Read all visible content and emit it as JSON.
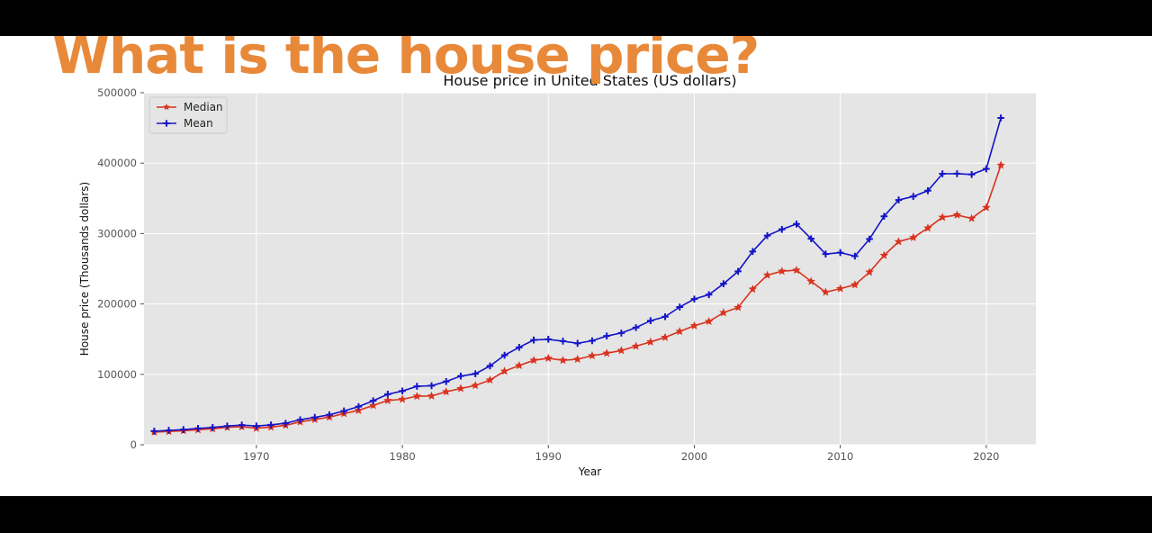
{
  "slide": {
    "headline": "What is the house price?"
  },
  "colors": {
    "headline": "#e8893a",
    "median": "#d9331f",
    "mean": "#1414c8",
    "plot_bg": "#e5e5e5",
    "grid": "#ffffff"
  },
  "chart_data": {
    "type": "line",
    "title": "House price in United States (US dollars)",
    "xlabel": "Year",
    "ylabel": "House price (Thousands dollars)",
    "xlim": [
      1962.3,
      2023.4
    ],
    "ylim": [
      0,
      500000
    ],
    "xticks": [
      1970,
      1980,
      1990,
      2000,
      2010,
      2020
    ],
    "yticks": [
      0,
      100000,
      200000,
      300000,
      400000,
      500000
    ],
    "grid": true,
    "legend": "top-left",
    "x": [
      1963,
      1964,
      1965,
      1966,
      1967,
      1968,
      1969,
      1970,
      1971,
      1972,
      1973,
      1974,
      1975,
      1976,
      1977,
      1978,
      1979,
      1980,
      1981,
      1982,
      1983,
      1984,
      1985,
      1986,
      1987,
      1988,
      1989,
      1990,
      1991,
      1992,
      1993,
      1994,
      1995,
      1996,
      1997,
      1998,
      1999,
      2000,
      2001,
      2002,
      2003,
      2004,
      2005,
      2006,
      2007,
      2008,
      2009,
      2010,
      2011,
      2012,
      2013,
      2014,
      2015,
      2016,
      2017,
      2018,
      2019,
      2020,
      2021
    ],
    "series": [
      {
        "name": "Median",
        "marker": "star",
        "values": [
          18000,
          18900,
          20000,
          21400,
          22700,
          24700,
          25600,
          23400,
          25200,
          27600,
          32500,
          35900,
          39300,
          44200,
          48800,
          55700,
          62900,
          64600,
          68900,
          69300,
          75300,
          79900,
          84300,
          92000,
          104500,
          112500,
          120000,
          122900,
          120000,
          121500,
          126500,
          130000,
          133900,
          140000,
          146000,
          152500,
          161000,
          169000,
          175200,
          187600,
          195000,
          221000,
          240900,
          246500,
          247900,
          232100,
          216700,
          221800,
          227200,
          245200,
          268900,
          288500,
          294200,
          307800,
          323100,
          326400,
          321500,
          336900,
          397100
        ]
      },
      {
        "name": "Mean",
        "marker": "plus",
        "values": [
          19300,
          20500,
          21500,
          23300,
          24600,
          26600,
          27900,
          26600,
          28300,
          30500,
          35500,
          38900,
          42600,
          48000,
          54200,
          62500,
          71800,
          76400,
          83000,
          83900,
          89800,
          97600,
          100800,
          111900,
          127200,
          138300,
          148800,
          149800,
          147200,
          144100,
          147700,
          154500,
          158700,
          166400,
          176200,
          181900,
          195600,
          207000,
          213200,
          228700,
          246300,
          274500,
          297000,
          305900,
          313600,
          292600,
          270900,
          272900,
          267900,
          292200,
          324500,
          347700,
          352700,
          360900,
          384900,
          385000,
          383900,
          391900,
          464200
        ]
      }
    ]
  }
}
